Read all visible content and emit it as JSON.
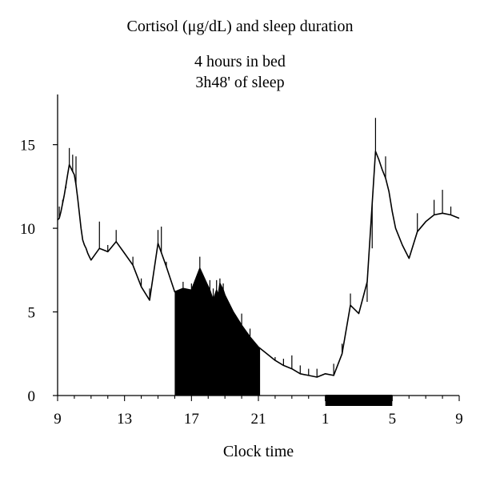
{
  "chart_data": {
    "type": "line",
    "title": "Cortisol (μg/dL) and sleep duration",
    "subtitle_lines": [
      "4 hours in bed",
      "3h48' of sleep"
    ],
    "xlabel": "Clock time",
    "ylabel": "",
    "x_ticks": [
      {
        "x": 0,
        "label": "9"
      },
      {
        "x": 4,
        "label": "13"
      },
      {
        "x": 8,
        "label": "17"
      },
      {
        "x": 12,
        "label": "21"
      },
      {
        "x": 16,
        "label": "1"
      },
      {
        "x": 20,
        "label": "5"
      },
      {
        "x": 24,
        "label": "9"
      }
    ],
    "xlim": [
      0,
      24
    ],
    "ylim": [
      0,
      18
    ],
    "y_ticks": [
      0,
      5,
      10,
      15
    ],
    "grid": false,
    "shaded_region": {
      "x_start": 7.0,
      "x_end": 12.1
    },
    "bed_bar": {
      "x_start": 16.0,
      "x_end": 20.0
    },
    "series": [
      {
        "x": [
          0,
          0.1,
          0.2,
          0.3,
          0.4,
          0.5,
          0.6,
          0.7,
          0.8,
          0.9,
          1.0,
          1.1,
          1.2,
          1.3,
          1.4,
          1.5,
          1.6,
          1.7,
          1.8,
          1.9,
          2.0,
          2.5,
          3.0,
          3.5,
          4.0,
          4.5,
          5.0,
          5.5,
          6.0,
          6.5,
          7.0,
          7.5,
          8.0,
          8.5,
          9.0,
          9.1,
          9.2,
          9.3,
          9.4,
          9.5,
          9.6,
          9.7,
          9.8,
          9.9,
          10.0,
          10.5,
          11.0,
          11.5,
          12.0,
          12.5,
          13.0,
          13.5,
          14.0,
          14.5,
          15.0,
          15.5,
          16.0,
          16.5,
          17.0,
          17.5,
          18.0,
          18.5,
          19.0,
          19.2,
          19.4,
          19.6,
          19.8,
          20.0,
          20.2,
          20.4,
          20.6,
          20.8,
          21.0,
          21.5,
          22.0,
          22.5,
          23.0,
          23.5,
          24.0
        ],
        "y": [
          10.5,
          10.6,
          11.0,
          11.5,
          12.0,
          12.6,
          13.2,
          13.8,
          13.6,
          13.4,
          13.2,
          12.6,
          11.8,
          10.9,
          10.0,
          9.3,
          9.0,
          8.8,
          8.5,
          8.3,
          8.1,
          8.8,
          8.6,
          9.2,
          8.5,
          7.8,
          6.5,
          5.7,
          9.1,
          7.7,
          6.2,
          6.4,
          6.3,
          7.6,
          6.5,
          6.3,
          6.0,
          5.7,
          6.0,
          6.3,
          6.0,
          6.7,
          6.5,
          6.3,
          6.0,
          5.0,
          4.2,
          3.5,
          2.9,
          2.5,
          2.1,
          1.8,
          1.6,
          1.3,
          1.2,
          1.1,
          1.3,
          1.2,
          2.5,
          5.4,
          4.9,
          6.8,
          14.6,
          14.1,
          13.5,
          13.0,
          12.2,
          11.0,
          10.0,
          9.5,
          9.0,
          8.6,
          8.2,
          9.8,
          10.4,
          10.8,
          10.9,
          10.8,
          10.6
        ]
      }
    ],
    "spikes": [
      [
        0.1,
        11.3
      ],
      [
        0.3,
        11.7
      ],
      [
        0.5,
        12.4
      ],
      [
        0.7,
        14.8
      ],
      [
        0.9,
        14.4
      ],
      [
        1.1,
        14.3
      ],
      [
        2.5,
        10.4
      ],
      [
        3.0,
        9.0
      ],
      [
        3.5,
        9.9
      ],
      [
        4.5,
        8.3
      ],
      [
        5.0,
        7.0
      ],
      [
        5.5,
        6.4
      ],
      [
        6.0,
        9.9
      ],
      [
        6.2,
        10.1
      ],
      [
        6.5,
        8.0
      ],
      [
        7.5,
        6.8
      ],
      [
        8.0,
        6.7
      ],
      [
        8.5,
        8.3
      ],
      [
        9.1,
        6.9
      ],
      [
        9.3,
        6.4
      ],
      [
        9.5,
        6.9
      ],
      [
        9.7,
        7.0
      ],
      [
        9.9,
        6.7
      ],
      [
        11.0,
        4.9
      ],
      [
        11.5,
        4.0
      ],
      [
        13.0,
        2.3
      ],
      [
        13.5,
        2.2
      ],
      [
        14.0,
        2.4
      ],
      [
        14.5,
        1.8
      ],
      [
        15.0,
        1.6
      ],
      [
        15.5,
        1.6
      ],
      [
        16.5,
        1.9
      ],
      [
        17.0,
        3.1
      ],
      [
        17.5,
        6.1
      ],
      [
        18.5,
        5.6
      ],
      [
        18.8,
        8.8
      ],
      [
        19.0,
        16.6
      ],
      [
        19.6,
        14.3
      ],
      [
        21.5,
        10.9
      ],
      [
        22.5,
        11.7
      ],
      [
        23.0,
        12.3
      ],
      [
        23.5,
        11.3
      ]
    ]
  }
}
